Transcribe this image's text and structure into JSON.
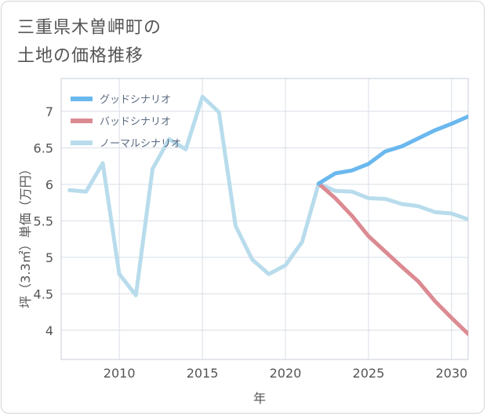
{
  "chart_data": {
    "type": "line",
    "title_lines": [
      "三重県木曽岬町の",
      "土地の価格推移"
    ],
    "xlabel": "年",
    "ylabel": "坪（3.3㎡）単価（万円）",
    "xlim": [
      2006.5,
      2031
    ],
    "ylim": [
      3.6,
      7.45
    ],
    "x_ticks": [
      2010,
      2015,
      2020,
      2025,
      2030
    ],
    "y_ticks": [
      4,
      4.5,
      5,
      5.5,
      6,
      6.5,
      7
    ],
    "x_tick_labels": [
      "2010",
      "2015",
      "2020",
      "2025",
      "2030"
    ],
    "y_tick_labels": [
      "4",
      "4.5",
      "5",
      "5.5",
      "6",
      "6.5",
      "7"
    ],
    "grid": true,
    "legend_position": "top-left",
    "series": [
      {
        "name": "グッドシナリオ",
        "color": "#6ab8ee",
        "x": [
          2022,
          2023,
          2024,
          2025,
          2026,
          2027,
          2028,
          2029,
          2030,
          2031
        ],
        "values": [
          6.01,
          6.15,
          6.19,
          6.28,
          6.45,
          6.52,
          6.63,
          6.74,
          6.83,
          6.93
        ]
      },
      {
        "name": "バッドシナリオ",
        "color": "#dc8a92",
        "x": [
          2022,
          2023,
          2024,
          2025,
          2026,
          2027,
          2028,
          2029,
          2030,
          2031
        ],
        "values": [
          6.01,
          5.81,
          5.57,
          5.29,
          5.08,
          4.87,
          4.67,
          4.4,
          4.17,
          3.95
        ]
      },
      {
        "name": "ノーマルシナリオ",
        "color": "#b8dcec",
        "x": [
          2007,
          2008,
          2009,
          2010,
          2011,
          2012,
          2013,
          2014,
          2015,
          2016,
          2017,
          2018,
          2019,
          2020,
          2021,
          2022,
          2023,
          2024,
          2025,
          2026,
          2027,
          2028,
          2029,
          2030,
          2031
        ],
        "values": [
          5.92,
          5.9,
          6.29,
          4.77,
          4.48,
          6.21,
          6.62,
          6.48,
          7.2,
          6.99,
          5.43,
          4.97,
          4.77,
          4.89,
          5.21,
          6.01,
          5.91,
          5.9,
          5.81,
          5.8,
          5.73,
          5.7,
          5.62,
          5.6,
          5.52
        ]
      }
    ]
  }
}
